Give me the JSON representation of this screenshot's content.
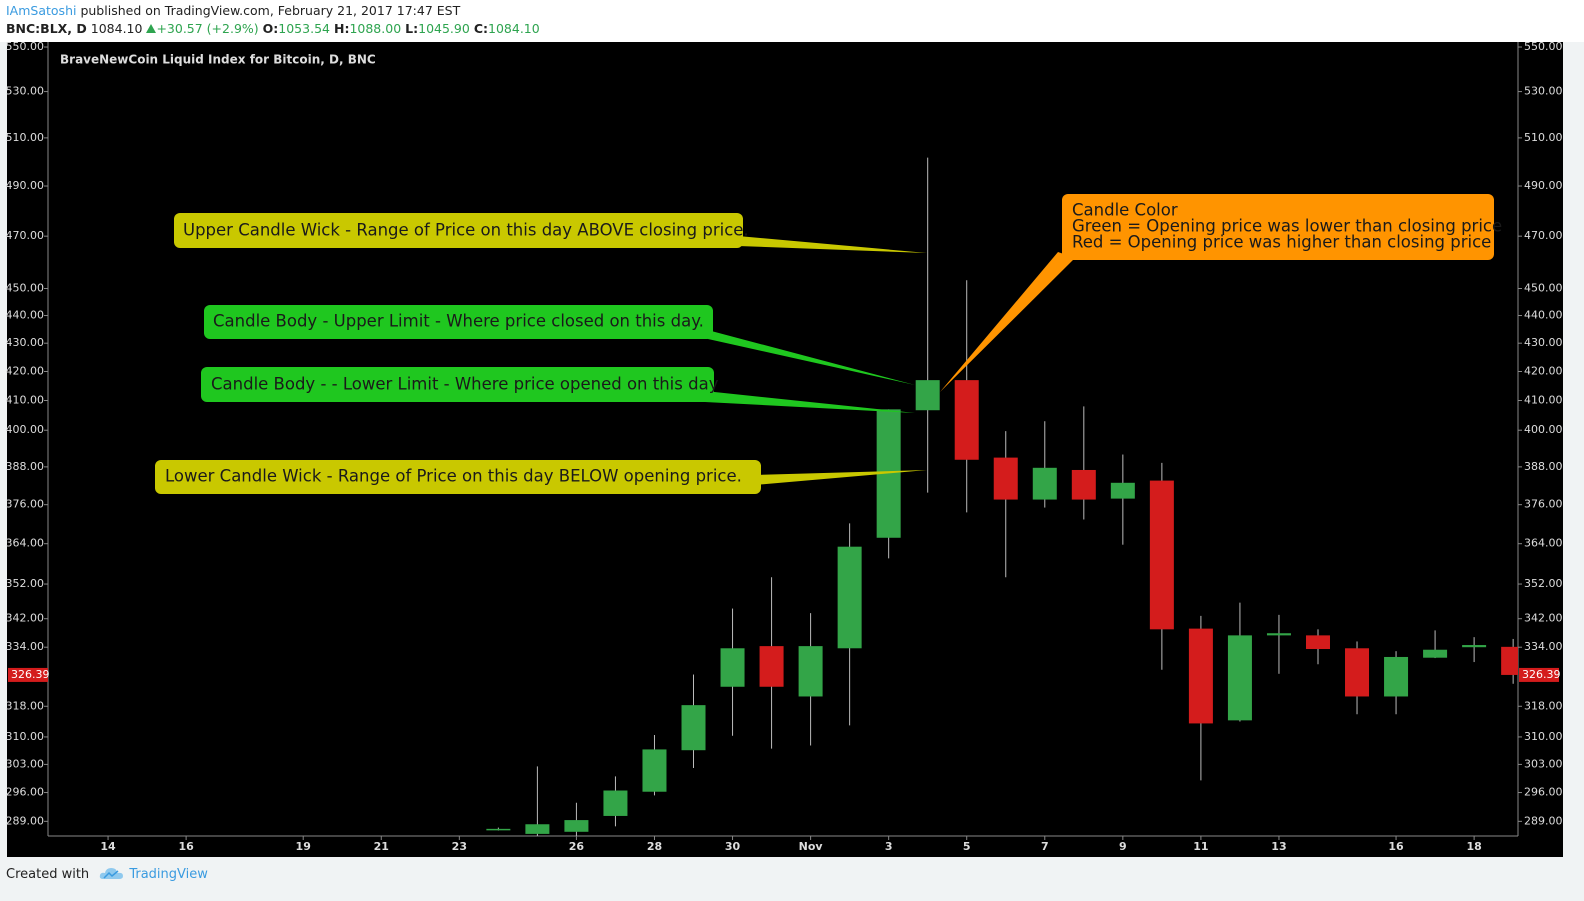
{
  "header": {
    "author": "IAmSatoshi",
    "published": "published on TradingView.com, February 21, 2017 17:47 EST",
    "symbol": "BNC:BLX, D",
    "price": "1084.10",
    "change": "+30.57 (+2.9%)",
    "ohlc": [
      {
        "label": "O:",
        "value": "1053.54"
      },
      {
        "label": "H:",
        "value": "1088.00"
      },
      {
        "label": "L:",
        "value": "1045.90"
      },
      {
        "label": "C:",
        "value": "1084.10"
      }
    ]
  },
  "chart_data": {
    "type": "candlestick",
    "title": "BraveNewCoin Liquid Index for Bitcoin, D, BNC",
    "categories": [
      null,
      null,
      "14",
      null,
      "16",
      null,
      null,
      "19",
      null,
      "21",
      null,
      "23",
      null,
      null,
      "26",
      null,
      "28",
      null,
      "30",
      null,
      "Nov",
      null,
      "3",
      null,
      "5",
      null,
      "7",
      null,
      "9",
      null,
      "11",
      null,
      "13",
      null,
      null,
      "16",
      null,
      "18",
      null
    ],
    "open": [
      null,
      null,
      null,
      null,
      null,
      null,
      null,
      null,
      null,
      null,
      null,
      null,
      287,
      286,
      286.5,
      290.3,
      296.2,
      306.6,
      323.2,
      334.3,
      320.6,
      333.7,
      365.8,
      406.7,
      417,
      391,
      377.6,
      387,
      377.9,
      383.6,
      339.2,
      314.3,
      337.3,
      337.3,
      333.7,
      320.6,
      331.1,
      334,
      334.1
    ],
    "high": [
      null,
      null,
      null,
      null,
      null,
      null,
      null,
      null,
      null,
      null,
      null,
      null,
      287.5,
      302.5,
      293.5,
      300,
      310.5,
      326.5,
      344.9,
      354,
      343.6,
      370.2,
      407,
      501.7,
      453.1,
      399.7,
      403,
      408,
      392,
      389.3,
      342.8,
      346.6,
      343.1,
      339,
      335.6,
      332.9,
      338.7,
      336.8,
      336.3
    ],
    "low": [
      null,
      null,
      null,
      null,
      null,
      null,
      null,
      null,
      null,
      null,
      null,
      null,
      286.8,
      285,
      285.5,
      287.8,
      295.3,
      302.1,
      310.3,
      307,
      307.8,
      313,
      359.6,
      379.8,
      373.6,
      354,
      375.1,
      371.4,
      363.7,
      327.8,
      299,
      314,
      326.7,
      329.3,
      315.9,
      315.9,
      331,
      329.9,
      324
    ],
    "close": [
      null,
      null,
      null,
      null,
      null,
      null,
      null,
      null,
      null,
      null,
      null,
      null,
      287.2,
      288.3,
      289.3,
      296.5,
      306.8,
      318.3,
      333.7,
      323.2,
      334.3,
      363.1,
      407,
      417,
      390.3,
      377.6,
      387.7,
      377.6,
      382.9,
      339,
      313.5,
      337.3,
      337.9,
      333.5,
      320.6,
      331.3,
      333.3,
      334.6,
      326.39
    ],
    "up_color": "#33a548",
    "down_color": "#d41c1c",
    "last_price": 326.39,
    "log_scale": true,
    "ylim": [
      285.5,
      552.3
    ],
    "yticks": [
      {
        "value": 550,
        "label": "550.00"
      },
      {
        "value": 530,
        "label": "530.00"
      },
      {
        "value": 510,
        "label": "510.00"
      },
      {
        "value": 490,
        "label": "490.00"
      },
      {
        "value": 470,
        "label": "470.00"
      },
      {
        "value": 450,
        "label": "450.00"
      },
      {
        "value": 440,
        "label": "440.00"
      },
      {
        "value": 430,
        "label": "430.00"
      },
      {
        "value": 420,
        "label": "420.00"
      },
      {
        "value": 410,
        "label": "410.00"
      },
      {
        "value": 400,
        "label": "400.00"
      },
      {
        "value": 388,
        "label": "388.00"
      },
      {
        "value": 376,
        "label": "376.00"
      },
      {
        "value": 364,
        "label": "364.00"
      },
      {
        "value": 352,
        "label": "352.00"
      },
      {
        "value": 342,
        "label": "342.00"
      },
      {
        "value": 334,
        "label": "334.00"
      },
      {
        "value": 318,
        "label": "318.00"
      },
      {
        "value": 310,
        "label": "310.00"
      },
      {
        "value": 303,
        "label": "303.00"
      },
      {
        "value": 296,
        "label": "296.00"
      },
      {
        "value": 289,
        "label": "289.00"
      }
    ],
    "annotations": [
      {
        "text": "Upper Candle Wick - Range of Price on this day ABOVE closing price."
      },
      {
        "text": "Candle Body - Upper Limit - Where price closed on this day."
      },
      {
        "text": "Candle Body - - Lower Limit - Where price opened on this day"
      },
      {
        "text": "Lower Candle Wick - Range of Price on this day BELOW opening price."
      },
      {
        "lines": [
          "Candle Color",
          "Green = Opening price was lower than closing price",
          "Red = Opening price was higher than closing price"
        ]
      }
    ]
  },
  "footer": {
    "text": "Created with",
    "brand": "TradingView"
  }
}
